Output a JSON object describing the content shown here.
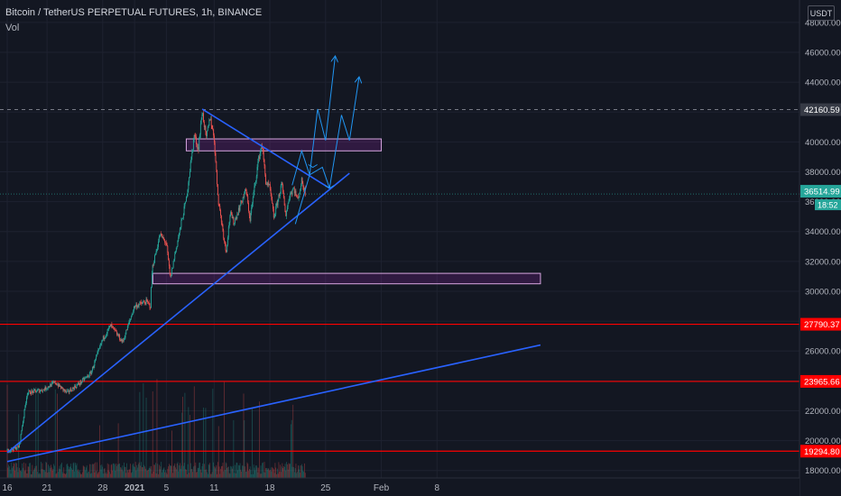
{
  "header": {
    "symbol_title": "Bitcoin / TetherUS PERPETUAL FUTURES, 1h, BINANCE",
    "volume_label": "Vol",
    "currency_button": "USDT"
  },
  "price_labels": {
    "last_price": "36514.99",
    "countdown": "18:52",
    "dashed_level": "42160.59"
  },
  "colors": {
    "background": "#131722",
    "up": "#26a69a",
    "down": "#ef5350",
    "support_line": "#2962ff",
    "horizontal_level": "#ff0000",
    "zone_border": "#9c27b0",
    "projection": "#2196f3",
    "last_price_badge": "#26a69a"
  },
  "chart_data": {
    "type": "candlestick",
    "title": "Bitcoin / TetherUS PERPETUAL FUTURES, 1h, BINANCE",
    "ylim": [
      17500,
      49500
    ],
    "y_ticks": [
      18000,
      20000,
      22000,
      24000,
      26000,
      28000,
      30000,
      32000,
      34000,
      36000,
      38000,
      40000,
      42000,
      44000,
      46000,
      48000
    ],
    "y_tick_labels": [
      "18000.00",
      "20000.00",
      "22000.00",
      "24000.00",
      "26000.00",
      "28000.00",
      "30000.00",
      "32000.00",
      "34000.00",
      "36000.00",
      "38000.00",
      "40000.00",
      "42000.00",
      "44000.00",
      "46000.00",
      "48000.00"
    ],
    "x_ticks": [
      {
        "day": 0,
        "label": "16"
      },
      {
        "day": 5,
        "label": "21"
      },
      {
        "day": 12,
        "label": "28"
      },
      {
        "day": 16,
        "label": "2021"
      },
      {
        "day": 20,
        "label": "5"
      },
      {
        "day": 26,
        "label": "11"
      },
      {
        "day": 33,
        "label": "18"
      },
      {
        "day": 40,
        "label": "25"
      },
      {
        "day": 47,
        "label": "Feb"
      },
      {
        "day": 54,
        "label": "8"
      }
    ],
    "x_unit": "days since Dec 16 2020",
    "price_path": [
      [
        0,
        19300
      ],
      [
        1.5,
        19600
      ],
      [
        2.5,
        23200
      ],
      [
        4.5,
        23400
      ],
      [
        6,
        23900
      ],
      [
        7.5,
        23200
      ],
      [
        9,
        23800
      ],
      [
        10.5,
        24500
      ],
      [
        12,
        26800
      ],
      [
        13,
        27700
      ],
      [
        14.5,
        26600
      ],
      [
        16,
        29000
      ],
      [
        17.5,
        29300
      ],
      [
        18,
        29000
      ],
      [
        18.2,
        31500
      ],
      [
        19.2,
        33800
      ],
      [
        20,
        33200
      ],
      [
        20.5,
        30800
      ],
      [
        21,
        32300
      ],
      [
        22.5,
        36200
      ],
      [
        23.5,
        40500
      ],
      [
        24,
        39500
      ],
      [
        24.5,
        42100
      ],
      [
        25,
        40200
      ],
      [
        25.5,
        41700
      ],
      [
        26,
        40200
      ],
      [
        26.5,
        36200
      ],
      [
        27.5,
        32600
      ],
      [
        28,
        35200
      ],
      [
        28.5,
        34600
      ],
      [
        29.5,
        36100
      ],
      [
        30,
        36800
      ],
      [
        30.5,
        34800
      ],
      [
        31.5,
        38600
      ],
      [
        32,
        39900
      ],
      [
        32.5,
        37300
      ],
      [
        33,
        36900
      ],
      [
        33.5,
        34900
      ],
      [
        34,
        36100
      ],
      [
        34.5,
        37200
      ],
      [
        35,
        35100
      ],
      [
        35.5,
        36500
      ],
      [
        36,
        36900
      ],
      [
        36.5,
        36100
      ],
      [
        37,
        37400
      ],
      [
        37.5,
        36500
      ]
    ],
    "last_price": 36514.99,
    "dashed_level": 42160.59,
    "horizontal_levels": [
      27790.37,
      23965.66,
      19294.8
    ],
    "zones": [
      {
        "y_low": 39400,
        "y_high": 40200,
        "x_start": 22.5,
        "x_end": 47
      },
      {
        "y_low": 30500,
        "y_high": 31200,
        "x_start": 18.3,
        "x_end": 67
      }
    ],
    "trendlines": [
      {
        "x1": 24.5,
        "y1": 42200,
        "x2": 40.5,
        "y2": 36900
      },
      {
        "x1": 0,
        "y1": 19200,
        "x2": 43,
        "y2": 37900
      },
      {
        "x1": 0,
        "y1": 18600,
        "x2": 67,
        "y2": 26400
      }
    ],
    "projections": [
      [
        [
          35.8,
          37100
        ],
        [
          37,
          39400
        ],
        [
          38,
          37800
        ],
        [
          39,
          42200
        ],
        [
          40,
          40100
        ],
        [
          41.2,
          45700
        ]
      ],
      [
        [
          36.2,
          34500
        ],
        [
          38,
          37800
        ],
        [
          39.6,
          38300
        ],
        [
          40.5,
          36900
        ],
        [
          42,
          41800
        ],
        [
          43,
          40100
        ],
        [
          44.2,
          44300
        ]
      ]
    ],
    "projection_cross_ups": [
      [
        38.4,
        38300
      ],
      [
        40.5,
        36900
      ]
    ]
  }
}
